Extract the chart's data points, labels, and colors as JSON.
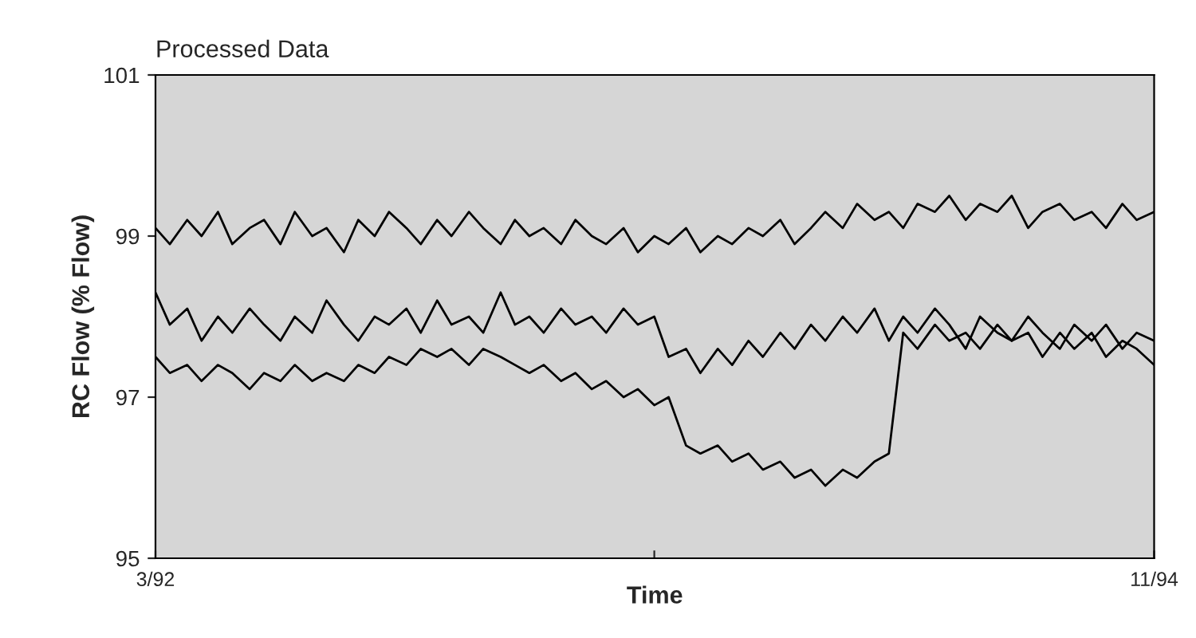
{
  "chart_data": {
    "type": "line",
    "title": "Processed Data",
    "xlabel": "Time",
    "ylabel": "RC Flow (% Flow)",
    "x": [
      "1992-03-01",
      "1992-03-15",
      "1992-04-01",
      "1992-04-15",
      "1992-05-01",
      "1992-05-15",
      "1992-06-01",
      "1992-06-15",
      "1992-07-01",
      "1992-07-15",
      "1992-08-01",
      "1992-08-15",
      "1992-09-01",
      "1992-09-15",
      "1992-10-01",
      "1992-10-15",
      "1992-11-01",
      "1992-11-15",
      "1992-12-01",
      "1992-12-15",
      "1993-01-01",
      "1993-01-15",
      "1993-02-01",
      "1993-02-15",
      "1993-03-01",
      "1993-03-15",
      "1993-04-01",
      "1993-04-15",
      "1993-05-01",
      "1993-05-15",
      "1993-06-01",
      "1993-06-15",
      "1993-07-01",
      "1993-07-15",
      "1993-08-01",
      "1993-08-15",
      "1993-09-01",
      "1993-09-15",
      "1993-10-01",
      "1993-10-15",
      "1993-11-01",
      "1993-11-15",
      "1993-12-01",
      "1993-12-15",
      "1994-01-01",
      "1994-01-15",
      "1994-02-01",
      "1994-02-15",
      "1994-03-01",
      "1994-03-15",
      "1994-04-01",
      "1994-04-15",
      "1994-05-01",
      "1994-05-15",
      "1994-06-01",
      "1994-06-15",
      "1994-07-01",
      "1994-07-15",
      "1994-08-01",
      "1994-08-15",
      "1994-09-01",
      "1994-09-15",
      "1994-10-01",
      "1994-10-15",
      "1994-11-01"
    ],
    "series": [
      {
        "color": "#000000",
        "values": [
          99.1,
          98.9,
          99.2,
          99.0,
          99.3,
          98.9,
          99.1,
          99.2,
          98.9,
          99.3,
          99.0,
          99.1,
          98.8,
          99.2,
          99.0,
          99.3,
          99.1,
          98.9,
          99.2,
          99.0,
          99.3,
          99.1,
          98.9,
          99.2,
          99.0,
          99.1,
          98.9,
          99.2,
          99.0,
          98.9,
          99.1,
          98.8,
          99.0,
          98.9,
          99.1,
          98.8,
          99.0,
          98.9,
          99.1,
          99.0,
          99.2,
          98.9,
          99.1,
          99.3,
          99.1,
          99.4,
          99.2,
          99.3,
          99.1,
          99.4,
          99.3,
          99.5,
          99.2,
          99.4,
          99.3,
          99.5,
          99.1,
          99.3,
          99.4,
          99.2,
          99.3,
          99.1,
          99.4,
          99.2,
          99.3
        ]
      },
      {
        "color": "#000000",
        "values": [
          98.3,
          97.9,
          98.1,
          97.7,
          98.0,
          97.8,
          98.1,
          97.9,
          97.7,
          98.0,
          97.8,
          98.2,
          97.9,
          97.7,
          98.0,
          97.9,
          98.1,
          97.8,
          98.2,
          97.9,
          98.0,
          97.8,
          98.3,
          97.9,
          98.0,
          97.8,
          98.1,
          97.9,
          98.0,
          97.8,
          98.1,
          97.9,
          98.0,
          97.5,
          97.6,
          97.3,
          97.6,
          97.4,
          97.7,
          97.5,
          97.8,
          97.6,
          97.9,
          97.7,
          98.0,
          97.8,
          98.1,
          97.7,
          98.0,
          97.8,
          98.1,
          97.9,
          97.6,
          98.0,
          97.8,
          97.7,
          98.0,
          97.8,
          97.6,
          97.9,
          97.7,
          97.9,
          97.6,
          97.8,
          97.7
        ]
      },
      {
        "color": "#000000",
        "values": [
          97.5,
          97.3,
          97.4,
          97.2,
          97.4,
          97.3,
          97.1,
          97.3,
          97.2,
          97.4,
          97.2,
          97.3,
          97.2,
          97.4,
          97.3,
          97.5,
          97.4,
          97.6,
          97.5,
          97.6,
          97.4,
          97.6,
          97.5,
          97.4,
          97.3,
          97.4,
          97.2,
          97.3,
          97.1,
          97.2,
          97.0,
          97.1,
          96.9,
          97.0,
          96.4,
          96.3,
          96.4,
          96.2,
          96.3,
          96.1,
          96.2,
          96.0,
          96.1,
          95.9,
          96.1,
          96.0,
          96.2,
          96.3,
          97.8,
          97.6,
          97.9,
          97.7,
          97.8,
          97.6,
          97.9,
          97.7,
          97.8,
          97.5,
          97.8,
          97.6,
          97.8,
          97.5,
          97.7,
          97.6,
          97.4
        ]
      }
    ],
    "xlim": [
      "1992-03-01",
      "1994-11-01"
    ],
    "xticks": [
      {
        "value": "1992-03-01",
        "label": "3/92"
      },
      {
        "value": "1993-07-01",
        "label": null
      },
      {
        "value": "1994-11-01",
        "label": "11/94"
      }
    ],
    "ylim": [
      95,
      101
    ],
    "yticks": [
      95,
      97,
      99,
      101
    ],
    "grid": false
  }
}
